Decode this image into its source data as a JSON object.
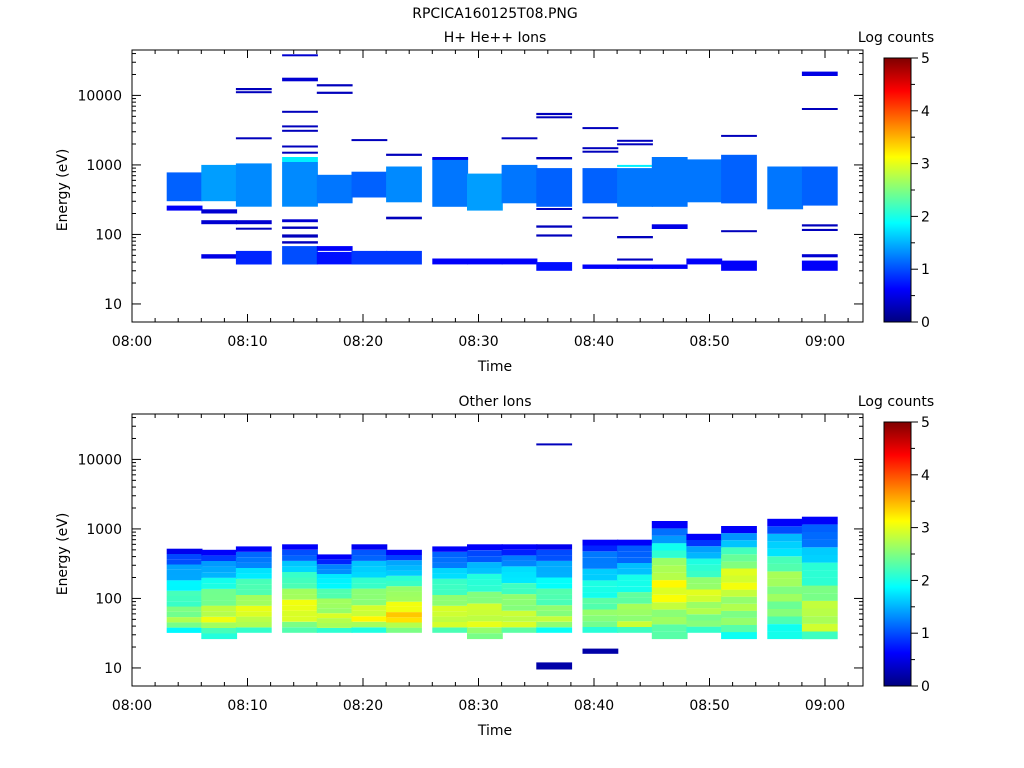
{
  "figure_title": "RPCICA160125T08.PNG",
  "colormap": [
    "#00007f",
    "#0000ff",
    "#0080ff",
    "#00ffff",
    "#80ff80",
    "#ffff00",
    "#ff8000",
    "#ff0000",
    "#7f0000"
  ],
  "chart_data": [
    {
      "type": "heatmap",
      "title": "H+ He++ Ions",
      "xlabel": "Time",
      "ylabel": "Energy (eV)",
      "y_scale": "log",
      "ylim": [
        5.5,
        45000
      ],
      "xlim": [
        "08:00",
        "09:04"
      ],
      "x_ticks": [
        "08:00",
        "08:10",
        "08:20",
        "08:30",
        "08:40",
        "08:50",
        "09:00"
      ],
      "y_ticks": [
        {
          "value": 10,
          "label": "10"
        },
        {
          "value": 100,
          "label": "100"
        },
        {
          "value": 1000,
          "label": "1000"
        },
        {
          "value": 10000,
          "label": "10000"
        }
      ],
      "colorbar": {
        "label": "Log counts",
        "range": [
          0,
          5
        ],
        "ticks": [
          "0",
          "1",
          "2",
          "3",
          "4",
          "5"
        ]
      },
      "time_bins": [
        "08:03",
        "08:06",
        "08:09",
        "08:13",
        "08:16",
        "08:19",
        "08:22",
        "08:26",
        "08:29",
        "08:32",
        "08:35",
        "08:39",
        "08:42",
        "08:45",
        "08:48",
        "08:51",
        "08:55",
        "08:58"
      ],
      "cells": [
        [
          0,
          780,
          300,
          1.1
        ],
        [
          0,
          260,
          220,
          0.6
        ],
        [
          1,
          1000,
          300,
          1.4
        ],
        [
          1,
          230,
          200,
          0.4
        ],
        [
          1,
          160,
          140,
          0.4
        ],
        [
          1,
          52,
          45,
          0.5
        ],
        [
          2,
          1050,
          250,
          1.3
        ],
        [
          2,
          12800,
          11900,
          0.3
        ],
        [
          2,
          11500,
          10800,
          0.3
        ],
        [
          2,
          2500,
          2400,
          0.3
        ],
        [
          2,
          160,
          140,
          0.4
        ],
        [
          2,
          125,
          118,
          0.3
        ],
        [
          2,
          58,
          37,
          0.8
        ],
        [
          3,
          1100,
          250,
          1.3
        ],
        [
          3,
          1300,
          1100,
          1.8
        ],
        [
          3,
          39000,
          37000,
          0.4
        ],
        [
          3,
          18000,
          16000,
          0.4
        ],
        [
          3,
          6000,
          5700,
          0.3
        ],
        [
          3,
          3700,
          3500,
          0.3
        ],
        [
          3,
          3200,
          3000,
          0.3
        ],
        [
          3,
          1900,
          1800,
          0.3
        ],
        [
          3,
          1550,
          1450,
          0.3
        ],
        [
          3,
          165,
          150,
          0.4
        ],
        [
          3,
          130,
          120,
          0.3
        ],
        [
          3,
          100,
          90,
          0.3
        ],
        [
          3,
          80,
          74,
          0.3
        ],
        [
          3,
          68,
          37,
          1.0
        ],
        [
          4,
          720,
          280,
          1.2
        ],
        [
          4,
          14500,
          13500,
          0.3
        ],
        [
          4,
          11300,
          10500,
          0.3
        ],
        [
          4,
          68,
          58,
          0.6
        ],
        [
          4,
          56,
          37,
          0.7
        ],
        [
          5,
          800,
          340,
          1.1
        ],
        [
          5,
          2350,
          2200,
          0.3
        ],
        [
          5,
          58,
          37,
          0.9
        ],
        [
          6,
          950,
          290,
          1.3
        ],
        [
          6,
          1450,
          1350,
          0.3
        ],
        [
          6,
          180,
          165,
          0.3
        ],
        [
          6,
          58,
          37,
          0.9
        ],
        [
          7,
          1250,
          250,
          1.2
        ],
        [
          7,
          1300,
          1180,
          0.5
        ],
        [
          7,
          45,
          37,
          0.6
        ],
        [
          8,
          750,
          220,
          1.4
        ],
        [
          8,
          45,
          37,
          0.6
        ],
        [
          9,
          1000,
          280,
          1.2
        ],
        [
          9,
          2500,
          2350,
          0.3
        ],
        [
          9,
          45,
          37,
          0.6
        ],
        [
          10,
          900,
          250,
          1.1
        ],
        [
          10,
          5600,
          5200,
          0.3
        ],
        [
          10,
          5000,
          4700,
          0.3
        ],
        [
          10,
          1300,
          1200,
          0.3
        ],
        [
          10,
          240,
          225,
          0.3
        ],
        [
          10,
          135,
          125,
          0.3
        ],
        [
          10,
          100,
          93,
          0.3
        ],
        [
          10,
          40,
          30,
          0.7
        ],
        [
          11,
          900,
          280,
          1.1
        ],
        [
          11,
          3500,
          3300,
          0.3
        ],
        [
          11,
          1800,
          1700,
          0.3
        ],
        [
          11,
          1600,
          1500,
          0.3
        ],
        [
          11,
          180,
          170,
          0.3
        ],
        [
          11,
          37,
          32,
          0.6
        ],
        [
          12,
          900,
          250,
          1.2
        ],
        [
          12,
          2300,
          2150,
          0.3
        ],
        [
          12,
          2050,
          1950,
          0.3
        ],
        [
          12,
          1000,
          940,
          1.8
        ],
        [
          12,
          95,
          88,
          0.3
        ],
        [
          12,
          45,
          42,
          0.3
        ],
        [
          12,
          37,
          32,
          0.6
        ],
        [
          13,
          1300,
          250,
          1.2
        ],
        [
          13,
          140,
          120,
          0.5
        ],
        [
          13,
          37,
          32,
          0.6
        ],
        [
          14,
          1200,
          290,
          1.2
        ],
        [
          14,
          45,
          37,
          0.6
        ],
        [
          15,
          1400,
          280,
          1.1
        ],
        [
          15,
          2700,
          2550,
          0.3
        ],
        [
          15,
          115,
          108,
          0.3
        ],
        [
          15,
          42,
          30,
          0.6
        ],
        [
          16,
          950,
          230,
          1.2
        ],
        [
          17,
          950,
          260,
          1.1
        ],
        [
          17,
          22000,
          19000,
          0.5
        ],
        [
          17,
          6600,
          6200,
          0.3
        ],
        [
          17,
          140,
          130,
          0.3
        ],
        [
          17,
          120,
          112,
          0.3
        ],
        [
          17,
          52,
          47,
          0.4
        ],
        [
          17,
          42,
          30,
          0.6
        ]
      ]
    },
    {
      "type": "heatmap",
      "title": "Other Ions",
      "xlabel": "Time",
      "ylabel": "Energy (eV)",
      "y_scale": "log",
      "ylim": [
        5.5,
        45000
      ],
      "xlim": [
        "08:00",
        "09:04"
      ],
      "x_ticks": [
        "08:00",
        "08:10",
        "08:20",
        "08:30",
        "08:40",
        "08:50",
        "09:00"
      ],
      "y_ticks": [
        {
          "value": 10,
          "label": "10"
        },
        {
          "value": 100,
          "label": "100"
        },
        {
          "value": 1000,
          "label": "1000"
        },
        {
          "value": 10000,
          "label": "10000"
        }
      ],
      "colorbar": {
        "label": "Log counts",
        "range": [
          0,
          5
        ],
        "ticks": [
          "0",
          "1",
          "2",
          "3",
          "4",
          "5"
        ]
      },
      "time_bins": [
        "08:03",
        "08:06",
        "08:09",
        "08:13",
        "08:16",
        "08:19",
        "08:22",
        "08:26",
        "08:29",
        "08:32",
        "08:35",
        "08:39",
        "08:42",
        "08:45",
        "08:48",
        "08:51",
        "08:55",
        "08:58"
      ],
      "profiles": [
        {
          "top": 520,
          "bottom": 32,
          "peak": 2.6,
          "peak_e": 45,
          "low": 1.4
        },
        {
          "top": 500,
          "bottom": 26,
          "peak": 2.9,
          "peak_e": 50,
          "low": 1.4
        },
        {
          "top": 560,
          "bottom": 32,
          "peak": 3.0,
          "peak_e": 52,
          "low": 1.6
        },
        {
          "top": 600,
          "bottom": 32,
          "peak": 3.1,
          "peak_e": 60,
          "low": 1.5
        },
        {
          "top": 430,
          "bottom": 32,
          "peak": 2.9,
          "peak_e": 50,
          "low": 1.5
        },
        {
          "top": 600,
          "bottom": 32,
          "peak": 3.0,
          "peak_e": 50,
          "low": 1.5
        },
        {
          "top": 500,
          "bottom": 32,
          "peak": 3.3,
          "peak_e": 50,
          "low": 1.7
        },
        {
          "top": 560,
          "bottom": 32,
          "peak": 3.0,
          "peak_e": 45,
          "low": 1.6
        },
        {
          "top": 600,
          "bottom": 26,
          "peak": 3.0,
          "peak_e": 45,
          "low": 1.8
        },
        {
          "top": 600,
          "bottom": 32,
          "peak": 2.9,
          "peak_e": 45,
          "low": 1.7
        },
        {
          "top": 600,
          "bottom": 32,
          "peak": 2.7,
          "peak_e": 45,
          "low": 1.4
        },
        {
          "top": 700,
          "bottom": 32,
          "peak": 2.6,
          "peak_e": 40,
          "low": 0.8
        },
        {
          "top": 700,
          "bottom": 32,
          "peak": 2.8,
          "peak_e": 40,
          "low": 1.2
        },
        {
          "top": 1300,
          "bottom": 26,
          "peak": 3.1,
          "peak_e": 150,
          "low": 1.8
        },
        {
          "top": 850,
          "bottom": 32,
          "peak": 2.9,
          "peak_e": 100,
          "low": 1.8
        },
        {
          "top": 1100,
          "bottom": 26,
          "peak": 3.0,
          "peak_e": 200,
          "low": 1.8
        },
        {
          "top": 1400,
          "bottom": 26,
          "peak": 2.7,
          "peak_e": 150,
          "low": 1.6
        },
        {
          "top": 1500,
          "bottom": 26,
          "peak": 2.9,
          "peak_e": 40,
          "low": 1.5
        }
      ],
      "cells": [
        [
          10,
          17000,
          16000,
          0.3
        ],
        [
          10,
          12,
          9.5,
          0.2
        ],
        [
          11,
          19,
          16,
          0.2
        ]
      ]
    }
  ]
}
